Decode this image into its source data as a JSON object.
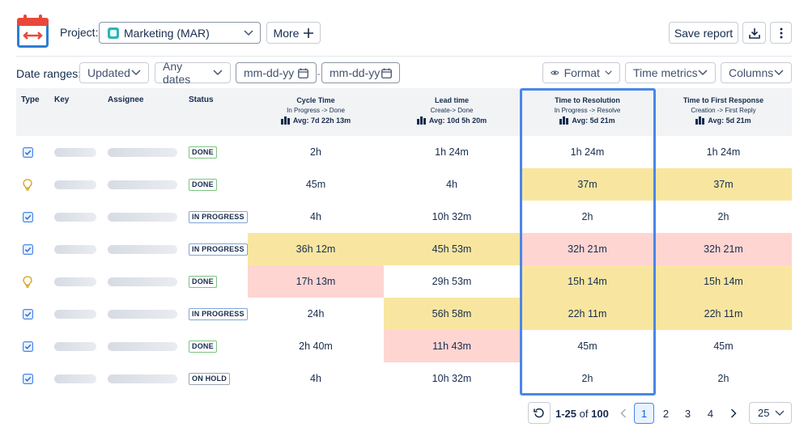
{
  "header": {
    "project_label": "Project:",
    "project_value": "Marketing (MAR)",
    "more_label": "More",
    "save_label": "Save report"
  },
  "filters": {
    "date_ranges_label": "Date ranges:",
    "updated": "Updated",
    "any_dates": "Any dates",
    "date_from_placeholder": "mm-dd-yy",
    "date_to_placeholder": "mm-dd-yy",
    "separator": "-",
    "format": "Format",
    "time_metrics": "Time metrics",
    "columns": "Columns"
  },
  "table": {
    "headers": {
      "type": "Type",
      "key": "Key",
      "assignee": "Assignee",
      "status": "Status"
    },
    "metrics": [
      {
        "title": "Cycle Time",
        "sub": "In Progress -> Done",
        "avg": "Avg: 7d 22h 13m"
      },
      {
        "title": "Lead time",
        "sub": "Create-> Done",
        "avg": "Avg: 10d 5h 20m"
      },
      {
        "title": "Time to Resolution",
        "sub": "In Progress -> Resolve",
        "avg": "Avg: 5d 21m"
      },
      {
        "title": "Time to First Response",
        "sub": "Creation -> First Reply",
        "avg": "Avg: 5d 21m"
      }
    ],
    "rows": [
      {
        "type": "checkbox-icon",
        "status": "DONE",
        "cycle": "2h",
        "lead": "1h 24m",
        "res": "1h 24m",
        "first": "1h 24m"
      },
      {
        "type": "lightbulb-icon",
        "status": "DONE",
        "cycle": "45m",
        "lead": "4h",
        "res": "37m",
        "first": "37m"
      },
      {
        "type": "checkbox-icon",
        "status": "IN PROGRESS",
        "cycle": "4h",
        "lead": "10h 32m",
        "res": "2h",
        "first": "2h"
      },
      {
        "type": "checkbox-icon",
        "status": "IN PROGRESS",
        "cycle": "36h 12m",
        "lead": "45h 53m",
        "res": "32h 21m",
        "first": "32h 21m"
      },
      {
        "type": "lightbulb-icon",
        "status": "DONE",
        "cycle": "17h 13m",
        "lead": "29h 53m",
        "res": "15h 14m",
        "first": "15h 14m"
      },
      {
        "type": "checkbox-icon",
        "status": "IN PROGRESS",
        "cycle": "24h",
        "lead": "56h 58m",
        "res": "22h 11m",
        "first": "22h 11m"
      },
      {
        "type": "checkbox-icon",
        "status": "DONE",
        "cycle": "2h 40m",
        "lead": "11h 43m",
        "res": "45m",
        "first": "45m"
      },
      {
        "type": "checkbox-icon",
        "status": "ON HOLD",
        "cycle": "4h",
        "lead": "10h 32m",
        "res": "2h",
        "first": "2h"
      }
    ]
  },
  "pagination": {
    "range": "1-25",
    "of": "of",
    "total": "100",
    "pages": [
      "1",
      "2",
      "3",
      "4"
    ],
    "per_page": "25"
  },
  "colors": {
    "highlight_border": "#4a86e8",
    "warning": "#f8e6a0",
    "danger": "#ffd5d2",
    "accent": "#4a86e8"
  }
}
